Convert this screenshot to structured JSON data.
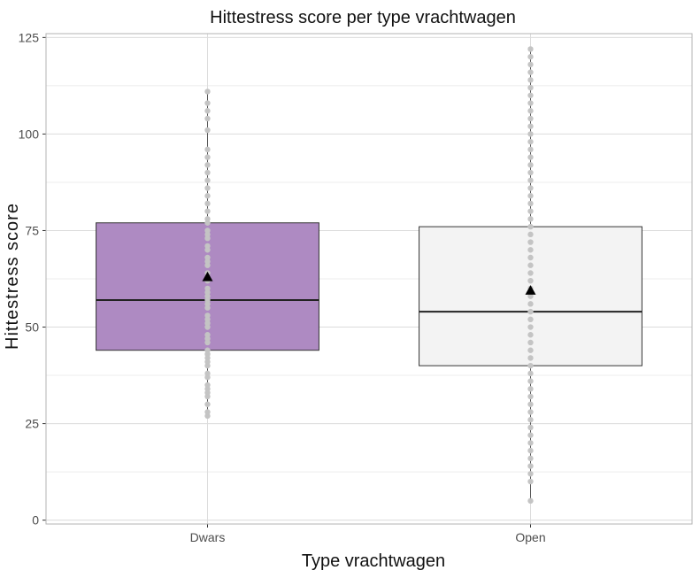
{
  "chart_data": {
    "type": "boxplot",
    "title": "Hittestress score per type vrachtwagen",
    "xlabel": "Type vrachtwagen",
    "ylabel": "Hittestress score",
    "categories": [
      "Dwars",
      "Open"
    ],
    "ylim": [
      -1,
      126
    ],
    "yticks": [
      0,
      25,
      50,
      75,
      100,
      125
    ],
    "grid": true,
    "legend": "none",
    "boxes": [
      {
        "name": "Dwars",
        "fill": "#ae8ac2",
        "q1": 44,
        "median": 57,
        "q3": 77,
        "whisker_low": 27,
        "whisker_high": 111,
        "mean": 63,
        "points": [
          27,
          28,
          30,
          32,
          33,
          34,
          35,
          37,
          38,
          40,
          41,
          42,
          43,
          44,
          46,
          47,
          48,
          50,
          51,
          52,
          53,
          55,
          56,
          57,
          58,
          59,
          60,
          62,
          63,
          64,
          66,
          67,
          68,
          70,
          71,
          73,
          74,
          75,
          77,
          78,
          80,
          82,
          84,
          86,
          88,
          90,
          92,
          94,
          96,
          101,
          104,
          106,
          108,
          111
        ]
      },
      {
        "name": "Open",
        "fill": "#f3f3f3",
        "q1": 40,
        "median": 54,
        "q3": 76,
        "whisker_low": 5,
        "whisker_high": 122,
        "mean": 59.5,
        "points": [
          5,
          10,
          12,
          14,
          16,
          18,
          20,
          22,
          24,
          26,
          28,
          30,
          32,
          34,
          36,
          38,
          40,
          42,
          44,
          46,
          48,
          50,
          52,
          54,
          56,
          58,
          60,
          62,
          64,
          66,
          68,
          70,
          72,
          74,
          76,
          78,
          80,
          82,
          84,
          86,
          88,
          90,
          92,
          94,
          96,
          98,
          100,
          102,
          104,
          106,
          108,
          110,
          112,
          114,
          116,
          118,
          120,
          122
        ]
      }
    ],
    "colors": {
      "box_outline": "#333333",
      "median_line": "#222222",
      "whisker": "#555555",
      "points": "#c4c4c4",
      "mean_marker": "#000000",
      "grid_major": "#dcdcdc",
      "grid_minor": "#ececec",
      "panel_border": "#b3b3b3"
    }
  }
}
